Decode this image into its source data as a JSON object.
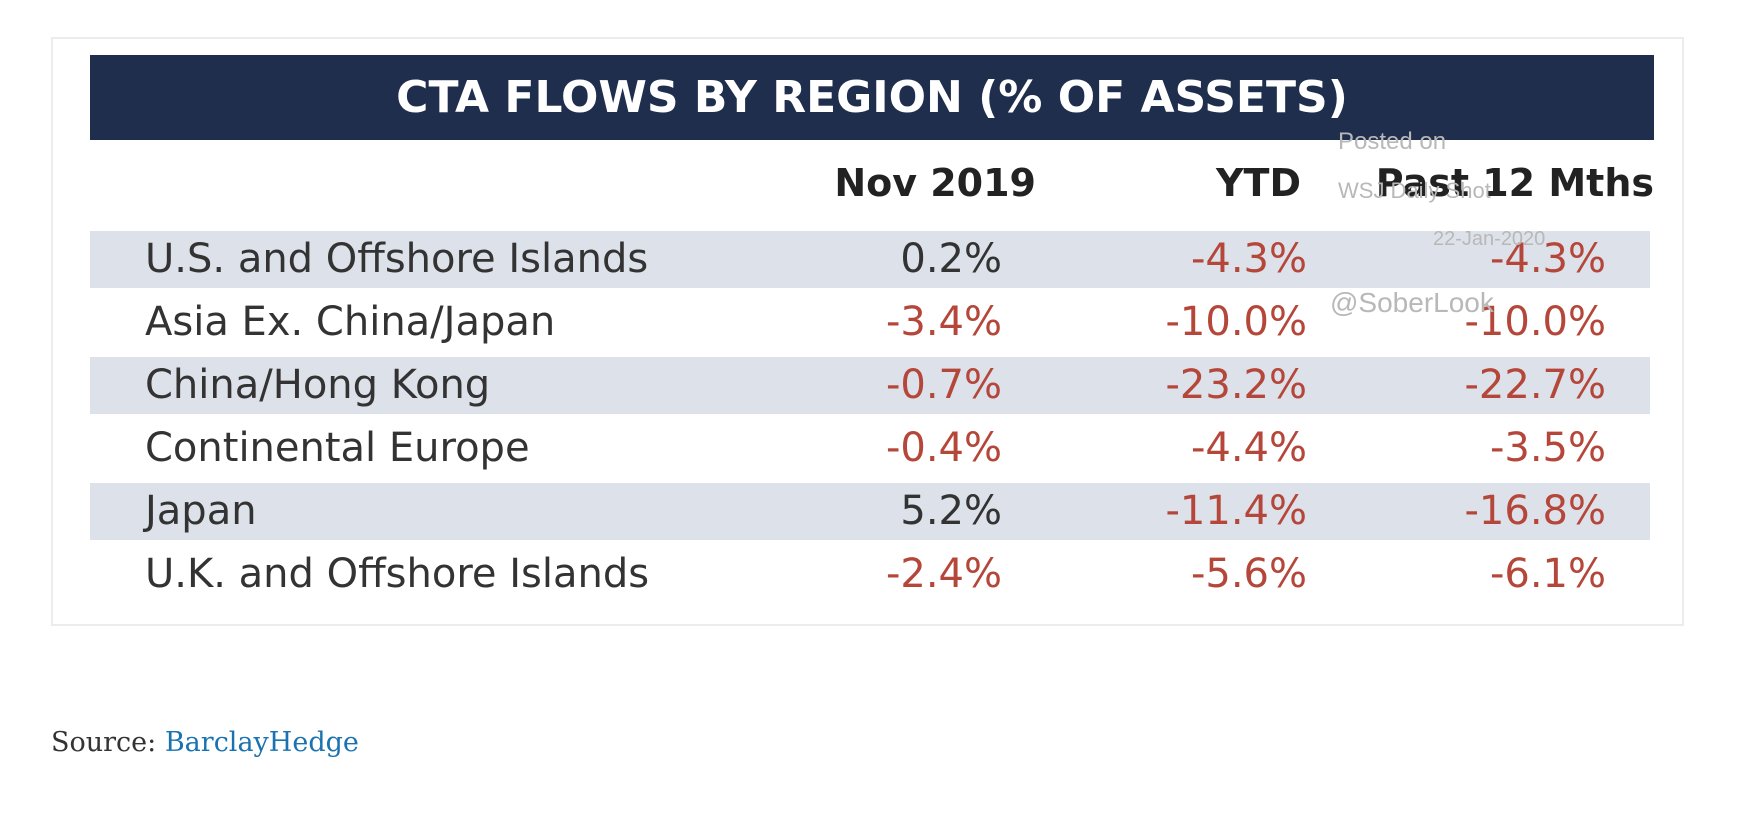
{
  "table": {
    "title": "CTA FLOWS BY REGION (% OF ASSETS)",
    "headers": [
      "Nov 2019",
      "YTD",
      "Past 12 Mths"
    ],
    "rows": [
      [
        "U.S. and Offshore Islands",
        "0.2%",
        "-4.3%",
        "-4.3%"
      ],
      [
        "Asia Ex. China/Japan",
        "-3.4%",
        "-10.0%",
        "-10.0%"
      ],
      [
        "China/Hong Kong",
        "-0.7%",
        "-23.2%",
        "-22.7%"
      ],
      [
        "Continental Europe",
        "-0.4%",
        "-4.4%",
        "-3.5%"
      ],
      [
        "Japan",
        "5.2%",
        "-11.4%",
        "-16.8%"
      ],
      [
        "U.K. and Offshore Islands",
        "-2.4%",
        "-5.6%",
        "-6.1%"
      ]
    ]
  },
  "watermark": [
    "Posted on",
    "WSJ Daily Shot",
    "22-Jan-2020",
    "@SoberLook"
  ],
  "footer": {
    "label": "Source:",
    "link": "BarclayHedge"
  }
}
